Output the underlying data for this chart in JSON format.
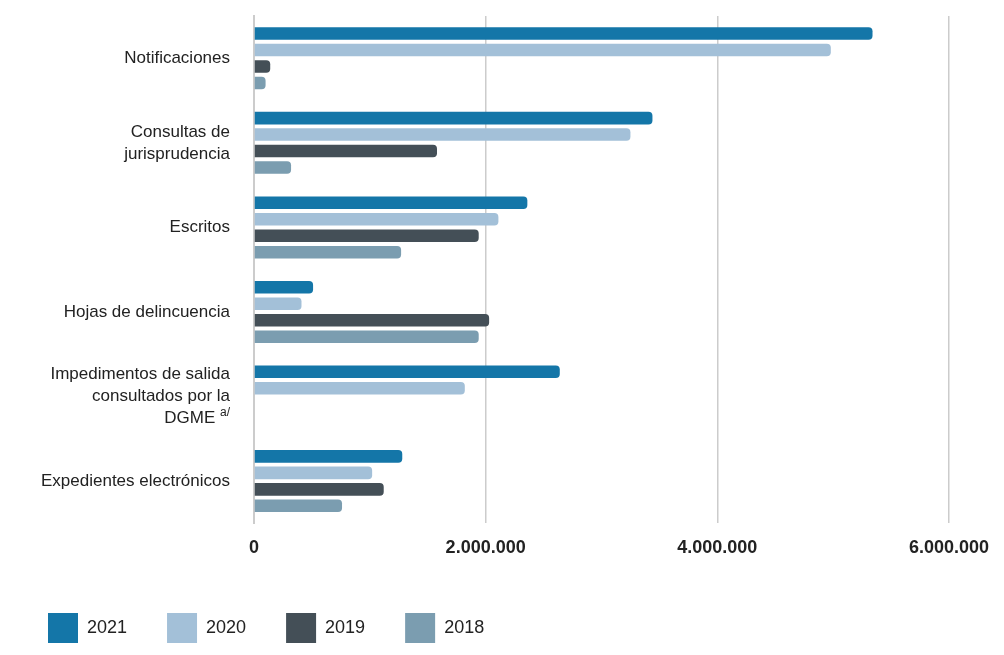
{
  "chart_data": {
    "type": "bar",
    "orientation": "horizontal",
    "categories": [
      "Notificaciones",
      "Consultas de\njurisprudencia",
      "Escritos",
      "Hojas de delincuencia",
      "Impedimentos de salida\nconsultados por la\nDGME $^{a/}$",
      "Expedientes electrónicos"
    ],
    "series": [
      {
        "name": "2021",
        "color": "#1476a8",
        "values": [
          5340000,
          3440000,
          2360000,
          510000,
          2640000,
          1280000
        ]
      },
      {
        "name": "2020",
        "color": "#a3c0d8",
        "values": [
          4980000,
          3250000,
          2110000,
          410000,
          1820000,
          1020000
        ]
      },
      {
        "name": "2019",
        "color": "#444f57",
        "values": [
          140000,
          1580000,
          1940000,
          2030000,
          null,
          1120000
        ]
      },
      {
        "name": "2018",
        "color": "#7b9db0",
        "values": [
          100000,
          320000,
          1270000,
          1940000,
          null,
          760000
        ]
      }
    ],
    "xlim": [
      0,
      6000000
    ],
    "xticks": [
      {
        "value": 0,
        "label": "0"
      },
      {
        "value": 2000000,
        "label": "2.000.000"
      },
      {
        "value": 4000000,
        "label": "4.000.000"
      },
      {
        "value": 6000000,
        "label": "6.000.000"
      }
    ],
    "grid": "x",
    "legend": "bottom"
  }
}
